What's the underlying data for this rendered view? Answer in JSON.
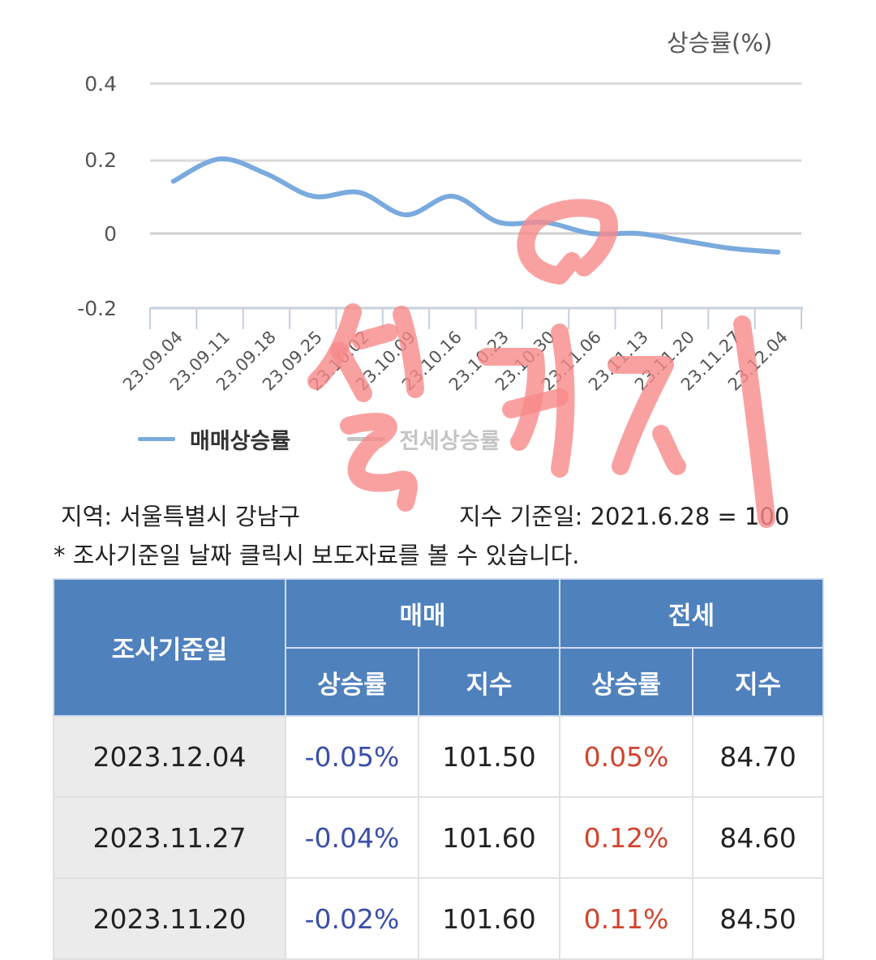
{
  "chart_data": {
    "type": "line",
    "title": "",
    "ylabel": "상승률(%)",
    "xlabel": "",
    "ylim": [
      -0.2,
      0.4
    ],
    "yticks": [
      "0.4",
      "0.2",
      "0",
      "-0.2"
    ],
    "grid": true,
    "legend_position": "bottom-left",
    "categories": [
      "23.09.04",
      "23.09.11",
      "23.09.18",
      "23.09.25",
      "23.10.02",
      "23.10.09",
      "23.10.16",
      "23.10.23",
      "23.10.30",
      "23.11.06",
      "23.11.13",
      "23.11.20",
      "23.11.27",
      "23.12.04"
    ],
    "series": [
      {
        "name": "매매상승률",
        "color": "#7aaade",
        "active": true,
        "values": [
          0.14,
          0.2,
          0.16,
          0.1,
          0.11,
          0.05,
          0.1,
          0.03,
          0.03,
          0.0,
          0.0,
          -0.02,
          -0.04,
          -0.05
        ]
      },
      {
        "name": "전세상승률",
        "color": "#bbbbbb",
        "active": false,
        "values": []
      }
    ]
  },
  "chart": {
    "unit_label": "상승률(%)",
    "legend": [
      {
        "label": "매매상승률",
        "color": "#7aaade",
        "text_color": "#333333"
      },
      {
        "label": "전세상승률",
        "color": "#c4c4c4",
        "text_color": "#c4c4c4"
      }
    ]
  },
  "info": {
    "region": "지역: 서울특별시 강남구",
    "base_date": "지수 기준일: 2021.6.28 = 100",
    "note": "* 조사기준일 날짜 클릭시 보도자료를 볼 수 있습니다."
  },
  "table": {
    "header": {
      "date": "조사기준일",
      "sale": "매매",
      "jeonse": "전세",
      "sale_rate": "상승률",
      "sale_index": "지수",
      "jeonse_rate": "상승률",
      "jeonse_index": "지수"
    },
    "rows": [
      {
        "date": "2023.12.04",
        "sale_rate": "-0.05%",
        "sale_index": "101.50",
        "jeonse_rate": "0.05%",
        "jeonse_index": "84.70"
      },
      {
        "date": "2023.11.27",
        "sale_rate": "-0.04%",
        "sale_index": "101.60",
        "jeonse_rate": "0.12%",
        "jeonse_index": "84.60"
      },
      {
        "date": "2023.11.20",
        "sale_rate": "-0.02%",
        "sale_index": "101.60",
        "jeonse_rate": "0.11%",
        "jeonse_index": "84.50"
      }
    ]
  },
  "annotation": {
    "handwritten_text": "살거지",
    "color": "#f78a8a"
  }
}
